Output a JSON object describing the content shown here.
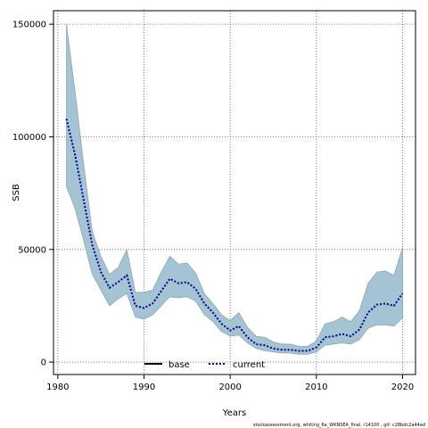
{
  "chart_data": {
    "type": "line",
    "xlabel": "Years",
    "ylabel": "SSB",
    "xlim": [
      1979.5,
      2021.5
    ],
    "ylim": [
      -5500,
      156000
    ],
    "x_ticks": [
      1980,
      1990,
      2000,
      2010,
      2020
    ],
    "y_ticks": [
      0,
      50000,
      100000,
      150000
    ],
    "x_tick_labels": [
      "1980",
      "1990",
      "2000",
      "2010",
      "2020"
    ],
    "y_tick_labels": [
      "0",
      "50000",
      "100000",
      "150000"
    ],
    "grid": true,
    "legend_position": "bottom-center",
    "series": [
      {
        "name": "base",
        "style": "solid",
        "color": "#000000",
        "x": [],
        "y": []
      },
      {
        "name": "current",
        "style": "dotted",
        "color": "#00008B",
        "x": [
          1981,
          1982,
          1983,
          1984,
          1985,
          1986,
          1987,
          1988,
          1989,
          1990,
          1991,
          1992,
          1993,
          1994,
          1995,
          1996,
          1997,
          1998,
          1999,
          2000,
          2001,
          2002,
          2003,
          2004,
          2005,
          2006,
          2007,
          2008,
          2009,
          2010,
          2011,
          2012,
          2013,
          2014,
          2015,
          2016,
          2017,
          2018,
          2019,
          2020
        ],
        "y": [
          108000,
          92000,
          72000,
          52000,
          40000,
          33000,
          35500,
          38500,
          25000,
          24000,
          26000,
          31500,
          37000,
          35000,
          35500,
          32500,
          26000,
          22000,
          17000,
          14000,
          16000,
          11000,
          8000,
          7500,
          6000,
          5500,
          5500,
          5000,
          5000,
          6500,
          11000,
          11500,
          12500,
          11500,
          14500,
          22000,
          25500,
          26000,
          25000,
          30500
        ]
      }
    ],
    "confidence_band": {
      "series": "current",
      "color": "#A4C3D3",
      "x": [
        1981,
        1982,
        1983,
        1984,
        1985,
        1986,
        1987,
        1988,
        1989,
        1990,
        1991,
        1992,
        1993,
        1994,
        1995,
        1996,
        1997,
        1998,
        1999,
        2000,
        2001,
        2002,
        2003,
        2004,
        2005,
        2006,
        2007,
        2008,
        2009,
        2010,
        2011,
        2012,
        2013,
        2014,
        2015,
        2016,
        2017,
        2018,
        2019,
        2020
      ],
      "upper": [
        150000,
        120000,
        88000,
        58000,
        47000,
        39000,
        42000,
        50000,
        31000,
        31000,
        32000,
        40000,
        47000,
        43500,
        44000,
        39500,
        30500,
        26000,
        21000,
        18500,
        22000,
        15500,
        11500,
        11000,
        9000,
        8000,
        8000,
        7000,
        7000,
        9500,
        17000,
        18000,
        20000,
        18000,
        23000,
        35000,
        40000,
        40500,
        38500,
        51000
      ],
      "lower": [
        78000,
        68000,
        54000,
        39000,
        32000,
        25000,
        28000,
        30500,
        20000,
        19000,
        21000,
        25000,
        29000,
        28500,
        29000,
        27000,
        21000,
        18000,
        13500,
        11500,
        12000,
        8500,
        6000,
        5000,
        4500,
        4000,
        4000,
        3500,
        3500,
        4500,
        7500,
        8000,
        8500,
        8000,
        10000,
        15000,
        16500,
        16500,
        16000,
        19500
      ]
    },
    "footnote": "stockassessment.org, whiting_6a_WKNSEA_final, r14100 , git: c28bdc2a44ad"
  }
}
